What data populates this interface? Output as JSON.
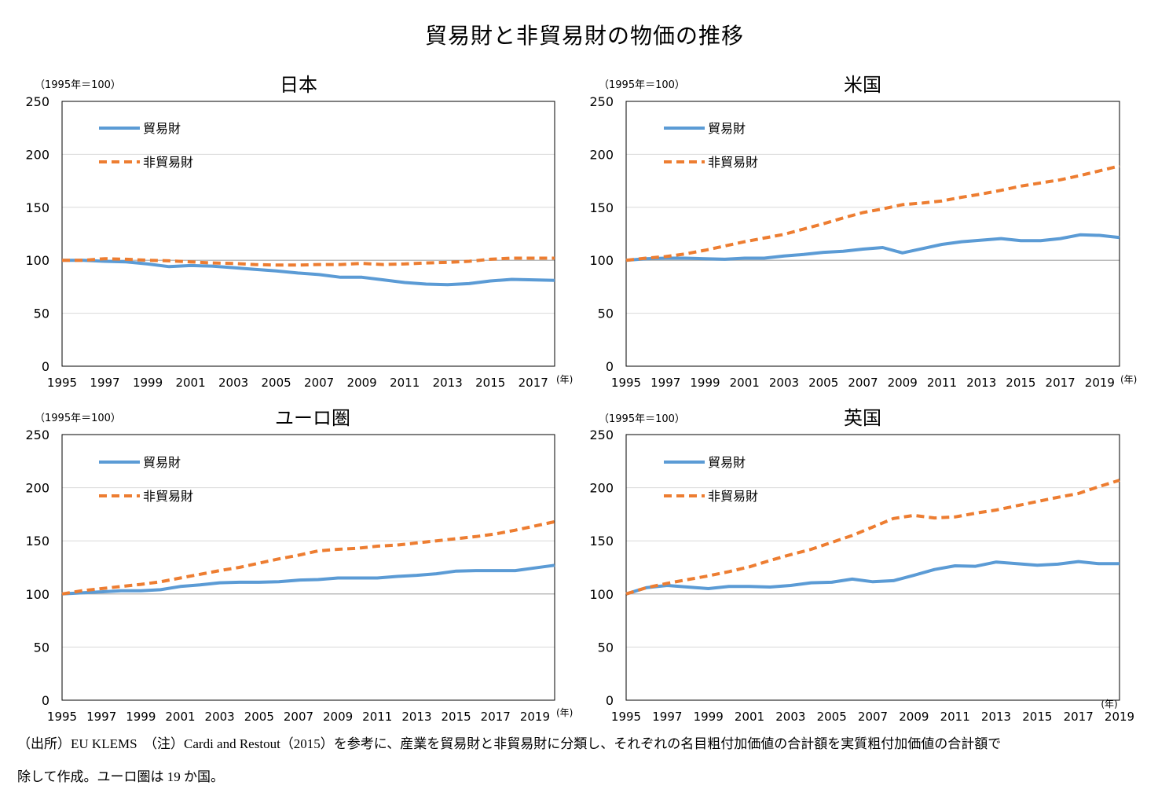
{
  "title": "貿易財と非貿易財の物価の推移",
  "colors": {
    "traded": "#5B9BD5",
    "nontraded": "#ED7D31",
    "gridline": "#d9d9d9",
    "baseline": "#a6a6a6",
    "axis": "#000000"
  },
  "chart_data": [
    {
      "type": "line",
      "title": "日本",
      "unit_label": "（1995年＝100）",
      "year_label": "(年)",
      "ylim": [
        0,
        250
      ],
      "yticks": [
        0,
        50,
        100,
        150,
        200,
        250
      ],
      "xlim": [
        1995,
        2018
      ],
      "xticks": [
        1995,
        1997,
        1999,
        2001,
        2003,
        2005,
        2007,
        2009,
        2011,
        2013,
        2015,
        2017
      ],
      "legend": [
        "貿易財",
        "非貿易財"
      ],
      "x": [
        1995,
        1996,
        1997,
        1998,
        1999,
        2000,
        2001,
        2002,
        2003,
        2004,
        2005,
        2006,
        2007,
        2008,
        2009,
        2010,
        2011,
        2012,
        2013,
        2014,
        2015,
        2016,
        2017,
        2018
      ],
      "series": [
        {
          "name": "貿易財",
          "values": [
            100,
            100,
            99,
            98.5,
            96.5,
            94,
            95,
            94.5,
            93,
            91.5,
            90,
            88,
            86.5,
            84,
            84,
            81.5,
            79,
            77.5,
            77,
            78,
            80.5,
            82,
            81.5,
            81
          ]
        },
        {
          "name": "非貿易財",
          "values": [
            100,
            100,
            101.5,
            101,
            100,
            99.5,
            98.5,
            97.5,
            97,
            96,
            95.5,
            95.5,
            96,
            96,
            97,
            96,
            96.5,
            97.5,
            98,
            99,
            101,
            102,
            102,
            102
          ]
        }
      ]
    },
    {
      "type": "line",
      "title": "米国",
      "unit_label": "（1995年＝100）",
      "year_label": "(年)",
      "ylim": [
        0,
        250
      ],
      "yticks": [
        0,
        50,
        100,
        150,
        200,
        250
      ],
      "xlim": [
        1995,
        2020
      ],
      "xticks": [
        1995,
        1997,
        1999,
        2001,
        2003,
        2005,
        2007,
        2009,
        2011,
        2013,
        2015,
        2017,
        2019
      ],
      "legend": [
        "貿易財",
        "非貿易財"
      ],
      "x": [
        1995,
        1996,
        1997,
        1998,
        1999,
        2000,
        2001,
        2002,
        2003,
        2004,
        2005,
        2006,
        2007,
        2008,
        2009,
        2010,
        2011,
        2012,
        2013,
        2014,
        2015,
        2016,
        2017,
        2018,
        2019,
        2020
      ],
      "series": [
        {
          "name": "貿易財",
          "values": [
            100,
            101.5,
            102,
            102,
            101.5,
            101,
            102,
            102,
            104,
            105.5,
            107.5,
            108.5,
            110.5,
            112,
            107,
            111,
            115,
            117.5,
            119,
            120.5,
            118.5,
            118.5,
            120.5,
            124,
            123.5,
            121.5
          ]
        },
        {
          "name": "非貿易財",
          "values": [
            100,
            102,
            103.5,
            106,
            109.5,
            113.5,
            117.5,
            121,
            124.5,
            129.5,
            134.5,
            140,
            145,
            148.5,
            152.5,
            154,
            156,
            159.5,
            162.5,
            166,
            170,
            173,
            176,
            180,
            184.5,
            189
          ]
        }
      ]
    },
    {
      "type": "line",
      "title": "ユーロ圏",
      "unit_label": "（1995年＝100）",
      "year_label": "(年)",
      "ylim": [
        0,
        250
      ],
      "yticks": [
        0,
        50,
        100,
        150,
        200,
        250
      ],
      "xlim": [
        1995,
        2020
      ],
      "xticks": [
        1995,
        1997,
        1999,
        2001,
        2003,
        2005,
        2007,
        2009,
        2011,
        2013,
        2015,
        2017,
        2019
      ],
      "legend": [
        "貿易財",
        "非貿易財"
      ],
      "x": [
        1995,
        1996,
        1997,
        1998,
        1999,
        2000,
        2001,
        2002,
        2003,
        2004,
        2005,
        2006,
        2007,
        2008,
        2009,
        2010,
        2011,
        2012,
        2013,
        2014,
        2015,
        2016,
        2017,
        2018,
        2019,
        2020
      ],
      "series": [
        {
          "name": "貿易財",
          "values": [
            100,
            101,
            102,
            103,
            103,
            104,
            107,
            108.5,
            110.5,
            111,
            111,
            111.5,
            113,
            113.5,
            115,
            115,
            115,
            116.5,
            117.5,
            119,
            121.5,
            122,
            122,
            122,
            124.5,
            127
          ]
        },
        {
          "name": "非貿易財",
          "values": [
            100,
            103,
            105,
            107,
            109,
            111.5,
            115,
            118.5,
            122,
            125,
            129,
            133,
            136.5,
            140.5,
            142,
            143,
            145,
            146,
            148,
            150,
            152,
            154,
            156.5,
            160,
            164,
            168
          ]
        }
      ]
    },
    {
      "type": "line",
      "title": "英国",
      "unit_label": "（1995年＝100）",
      "year_label": "(年)",
      "ylim": [
        0,
        250
      ],
      "yticks": [
        0,
        50,
        100,
        150,
        200,
        250
      ],
      "xlim": [
        1995,
        2019
      ],
      "xticks": [
        1995,
        1997,
        1999,
        2001,
        2003,
        2005,
        2007,
        2009,
        2011,
        2013,
        2015,
        2017,
        2019
      ],
      "legend": [
        "貿易財",
        "非貿易財"
      ],
      "x": [
        1995,
        1996,
        1997,
        1998,
        1999,
        2000,
        2001,
        2002,
        2003,
        2004,
        2005,
        2006,
        2007,
        2008,
        2009,
        2010,
        2011,
        2012,
        2013,
        2014,
        2015,
        2016,
        2017,
        2018,
        2019
      ],
      "series": [
        {
          "name": "貿易財",
          "values": [
            100,
            106,
            108,
            106.5,
            105,
            107,
            107,
            106.5,
            108,
            110.5,
            111,
            114,
            111.5,
            112.5,
            117.5,
            123,
            126.5,
            126,
            130,
            128.5,
            127,
            128,
            130.5,
            128.5,
            128.5
          ]
        },
        {
          "name": "非貿易財",
          "values": [
            100,
            106,
            110,
            113.5,
            117,
            121,
            125.5,
            131.5,
            137,
            142,
            148.5,
            155,
            163,
            171,
            174,
            171.5,
            172.5,
            176,
            179,
            183,
            187,
            191,
            194.5,
            201,
            207
          ]
        }
      ]
    }
  ],
  "notes": {
    "line1": "（出所）EU KLEMS　（注）Cardi and Restout（2015）を参考に、産業を貿易財と非貿易財に分類し、それぞれの名目粗付加価値の合計額を実質粗付加価値の合計額で",
    "line2": "除して作成。ユーロ圏は 19 か国。"
  }
}
